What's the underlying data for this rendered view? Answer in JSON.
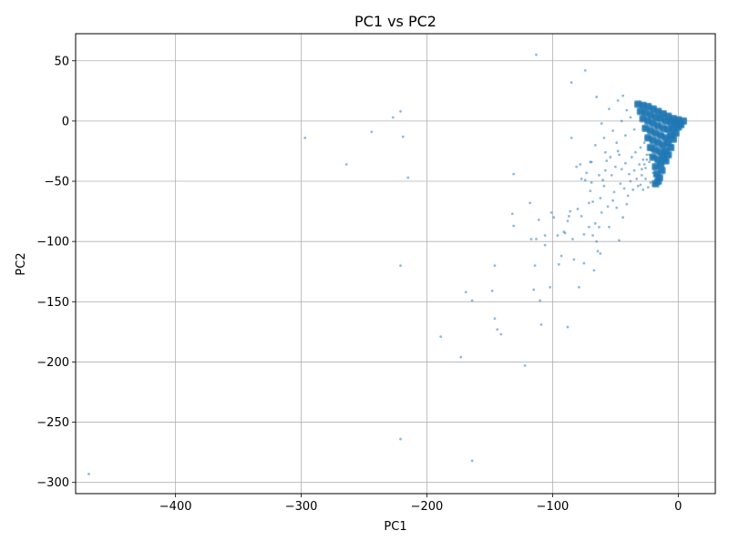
{
  "chart_data": {
    "type": "scatter",
    "title": "PC1 vs PC2",
    "xlabel": "PC1",
    "ylabel": "PC2",
    "xlim": [
      -479.5,
      29.5
    ],
    "ylim": [
      -309.3,
      72.5
    ],
    "xticks": [
      -400,
      -300,
      -200,
      -100,
      0
    ],
    "yticks": [
      50,
      0,
      -50,
      -100,
      -150,
      -200,
      -250,
      -300
    ],
    "xtick_labels": [
      "−400",
      "−300",
      "−200",
      "−100",
      "0"
    ],
    "ytick_labels": [
      "50",
      "0",
      "−50",
      "−100",
      "−150",
      "−200",
      "−250",
      "−300"
    ],
    "grid": true,
    "marker_color": "#1f77b4",
    "marker_alpha": 0.5,
    "points": [
      [
        -469,
        -293
      ],
      [
        -221,
        -264
      ],
      [
        -164,
        -282
      ],
      [
        -297,
        -14
      ],
      [
        -264,
        -36
      ],
      [
        -244,
        -9
      ],
      [
        -227,
        3
      ],
      [
        -221,
        8
      ],
      [
        -219,
        -13
      ],
      [
        -215,
        -47
      ],
      [
        -221,
        -120
      ],
      [
        -189,
        -179
      ],
      [
        -173,
        -196
      ],
      [
        -169,
        -142
      ],
      [
        -164,
        -149
      ],
      [
        -148,
        -141
      ],
      [
        -146,
        -164
      ],
      [
        -144,
        -173
      ],
      [
        -141,
        -177
      ],
      [
        -122,
        -203
      ],
      [
        -146,
        -120
      ],
      [
        -131,
        -44
      ],
      [
        -132,
        -77
      ],
      [
        -131,
        -87
      ],
      [
        -118,
        -68
      ],
      [
        -117,
        -98
      ],
      [
        -115,
        -140
      ],
      [
        -114,
        -120
      ],
      [
        -113,
        -98
      ],
      [
        -111,
        -82
      ],
      [
        -110,
        -149
      ],
      [
        -109,
        -169
      ],
      [
        -106,
        -103
      ],
      [
        -106,
        -95
      ],
      [
        -102,
        -138
      ],
      [
        -101,
        -76
      ],
      [
        -99,
        -80
      ],
      [
        -96,
        -95
      ],
      [
        -95,
        -119
      ],
      [
        -93,
        -112
      ],
      [
        -91,
        -92
      ],
      [
        -90,
        -93
      ],
      [
        -88,
        -171
      ],
      [
        -88,
        -83
      ],
      [
        -87,
        -79
      ],
      [
        -86,
        -75
      ],
      [
        -85,
        -14
      ],
      [
        -84,
        -98
      ],
      [
        -83,
        -115
      ],
      [
        -81,
        -38
      ],
      [
        -79,
        -138
      ],
      [
        -77,
        -79
      ],
      [
        -75,
        -118
      ],
      [
        -74,
        -49
      ],
      [
        -73,
        -43
      ],
      [
        -71,
        -88
      ],
      [
        -70,
        -58
      ],
      [
        -69,
        -34
      ],
      [
        -68,
        -67
      ],
      [
        -67,
        -124
      ],
      [
        -66,
        -85
      ],
      [
        -65,
        -100
      ],
      [
        -64,
        -108
      ],
      [
        -63,
        -88
      ],
      [
        -62,
        -64
      ],
      [
        -61,
        -76
      ],
      [
        -60,
        -49
      ],
      [
        -59,
        -54
      ],
      [
        -58,
        -41
      ],
      [
        -57,
        -33
      ],
      [
        -56,
        -71
      ],
      [
        -55,
        -88
      ],
      [
        -54,
        -30
      ],
      [
        -53,
        -45
      ],
      [
        -52,
        -66
      ],
      [
        -51,
        -59
      ],
      [
        -50,
        -38
      ],
      [
        -49,
        -72
      ],
      [
        -48,
        -25
      ],
      [
        -47,
        -99
      ],
      [
        -46,
        -52
      ],
      [
        -45,
        -40
      ],
      [
        -44,
        -80
      ],
      [
        -43,
        -56
      ],
      [
        -42,
        -35
      ],
      [
        -41,
        -69
      ],
      [
        -40,
        -62
      ],
      [
        -39,
        -44
      ],
      [
        -38,
        -50
      ],
      [
        -37,
        -30
      ],
      [
        -36,
        -57
      ],
      [
        -35,
        -41
      ],
      [
        -34,
        -26
      ],
      [
        -33,
        -48
      ],
      [
        -32,
        -54
      ],
      [
        -31,
        -36
      ],
      [
        -30,
        -22
      ],
      [
        -29,
        -45
      ],
      [
        -28,
        -32
      ],
      [
        -27,
        -18
      ],
      [
        -26,
        -39
      ],
      [
        -25,
        -28
      ],
      [
        -24,
        -14
      ],
      [
        -23,
        -34
      ],
      [
        -22,
        -24
      ],
      [
        -21,
        -10
      ],
      [
        -20,
        -30
      ],
      [
        -19,
        -20
      ],
      [
        -18,
        -6
      ],
      [
        -17,
        -26
      ],
      [
        -16,
        -16
      ],
      [
        -15,
        -3
      ],
      [
        -14,
        -22
      ],
      [
        -13,
        -12
      ],
      [
        -12,
        0
      ],
      [
        -11,
        -18
      ],
      [
        -10,
        -8
      ],
      [
        -9,
        2
      ],
      [
        -8,
        -14
      ],
      [
        -7,
        -4
      ],
      [
        -6,
        3
      ],
      [
        -5,
        -10
      ],
      [
        -4,
        -1
      ],
      [
        -3,
        2
      ],
      [
        -2,
        -5
      ],
      [
        -1,
        0
      ],
      [
        -113,
        55
      ],
      [
        -74,
        42
      ],
      [
        -85,
        32
      ],
      [
        -65,
        20
      ],
      [
        -44,
        21
      ],
      [
        -48,
        17
      ],
      [
        -55,
        10
      ],
      [
        -61,
        -2
      ],
      [
        -41,
        9
      ],
      [
        -38,
        3
      ],
      [
        -35,
        -7
      ],
      [
        -45,
        0
      ],
      [
        -52,
        -8
      ],
      [
        -59,
        -14
      ],
      [
        -66,
        -20
      ],
      [
        -70,
        -34
      ],
      [
        -78,
        -36
      ],
      [
        -58,
        -26
      ],
      [
        -49,
        -18
      ],
      [
        -42,
        -12
      ],
      [
        -47,
        -28
      ],
      [
        -63,
        -45
      ],
      [
        -69,
        -51
      ],
      [
        -77,
        -48
      ],
      [
        -71,
        -68
      ],
      [
        -80,
        -73
      ],
      [
        -75,
        -94
      ],
      [
        -68,
        -95
      ],
      [
        -62,
        -110
      ],
      [
        -30,
        -53
      ],
      [
        -28,
        -57
      ],
      [
        -26,
        -48
      ],
      [
        -24,
        -55
      ],
      [
        -22,
        -51
      ],
      [
        -20,
        -43
      ],
      [
        -18,
        -39
      ],
      [
        -29,
        -40
      ],
      [
        -27,
        -36
      ],
      [
        -25,
        -32
      ],
      [
        -23,
        -28
      ],
      [
        -21,
        -25
      ],
      [
        -19,
        -21
      ],
      [
        -17,
        -17
      ]
    ],
    "dense_region": {
      "x_range": [
        -32,
        5
      ],
      "y_range": [
        -55,
        14
      ],
      "description_points": [
        [
          -32,
          14
        ],
        [
          -28,
          13
        ],
        [
          -24,
          12
        ],
        [
          -20,
          10
        ],
        [
          -16,
          8
        ],
        [
          -12,
          6
        ],
        [
          -8,
          4
        ],
        [
          -4,
          2
        ],
        [
          0,
          1
        ],
        [
          4,
          0
        ],
        [
          -30,
          8
        ],
        [
          -26,
          7
        ],
        [
          -22,
          5
        ],
        [
          -18,
          3
        ],
        [
          -14,
          2
        ],
        [
          -10,
          0
        ],
        [
          -6,
          -1
        ],
        [
          -2,
          -2
        ],
        [
          2,
          -3
        ],
        [
          -28,
          2
        ],
        [
          -24,
          0
        ],
        [
          -20,
          -2
        ],
        [
          -16,
          -4
        ],
        [
          -12,
          -6
        ],
        [
          -8,
          -7
        ],
        [
          -4,
          -6
        ],
        [
          0,
          -5
        ],
        [
          -26,
          -6
        ],
        [
          -22,
          -8
        ],
        [
          -18,
          -10
        ],
        [
          -14,
          -12
        ],
        [
          -10,
          -14
        ],
        [
          -6,
          -12
        ],
        [
          -2,
          -10
        ],
        [
          -24,
          -14
        ],
        [
          -20,
          -16
        ],
        [
          -16,
          -18
        ],
        [
          -12,
          -20
        ],
        [
          -8,
          -18
        ],
        [
          -4,
          -15
        ],
        [
          -22,
          -22
        ],
        [
          -18,
          -24
        ],
        [
          -14,
          -26
        ],
        [
          -10,
          -25
        ],
        [
          -6,
          -22
        ],
        [
          -20,
          -30
        ],
        [
          -16,
          -32
        ],
        [
          -12,
          -30
        ],
        [
          -8,
          -28
        ],
        [
          -18,
          -38
        ],
        [
          -14,
          -36
        ],
        [
          -10,
          -33
        ],
        [
          -17,
          -44
        ],
        [
          -13,
          -41
        ],
        [
          -16,
          -50
        ],
        [
          -15,
          -47
        ],
        [
          -18,
          -52
        ]
      ]
    }
  }
}
